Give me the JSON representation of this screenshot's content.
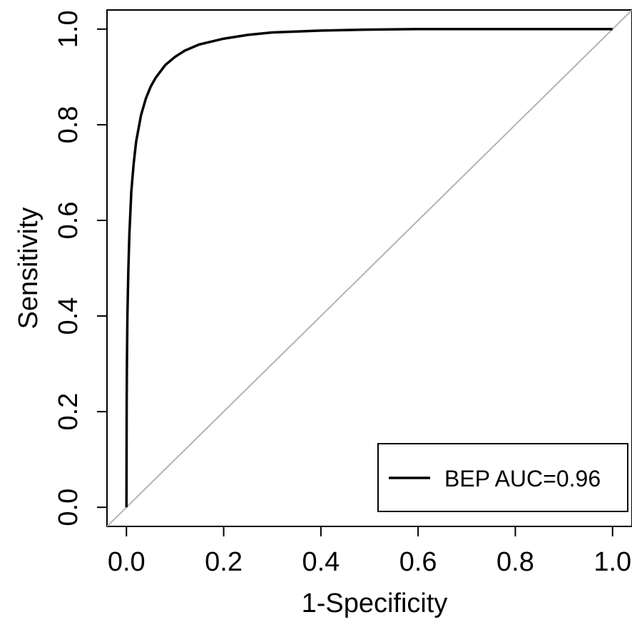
{
  "chart_data": {
    "type": "line",
    "title": "",
    "xlabel": "1-Specificity",
    "ylabel": "Sensitivity",
    "xlim": [
      -0.04,
      1.04
    ],
    "ylim": [
      -0.04,
      1.04
    ],
    "x_ticks": [
      "0.0",
      "0.2",
      "0.4",
      "0.6",
      "0.8",
      "1.0"
    ],
    "y_ticks": [
      "0.0",
      "0.2",
      "0.4",
      "0.6",
      "0.8",
      "1.0"
    ],
    "grid": false,
    "legend_position": "bottom-right",
    "series": [
      {
        "name": "BEP AUC=0.96",
        "color": "#000000",
        "x": [
          0.0,
          0.0005,
          0.001,
          0.002,
          0.004,
          0.006,
          0.01,
          0.015,
          0.02,
          0.03,
          0.04,
          0.05,
          0.06,
          0.08,
          0.1,
          0.12,
          0.15,
          0.2,
          0.25,
          0.3,
          0.4,
          0.5,
          0.6,
          0.8,
          1.0
        ],
        "y": [
          0.0,
          0.22,
          0.3,
          0.4,
          0.5,
          0.57,
          0.66,
          0.72,
          0.765,
          0.82,
          0.855,
          0.88,
          0.898,
          0.925,
          0.942,
          0.955,
          0.968,
          0.98,
          0.988,
          0.993,
          0.997,
          0.999,
          1.0,
          1.0,
          1.0
        ]
      },
      {
        "name": "",
        "color": "#b3b3b3",
        "x": [
          -0.04,
          1.04
        ],
        "y": [
          -0.04,
          1.04
        ]
      }
    ]
  }
}
